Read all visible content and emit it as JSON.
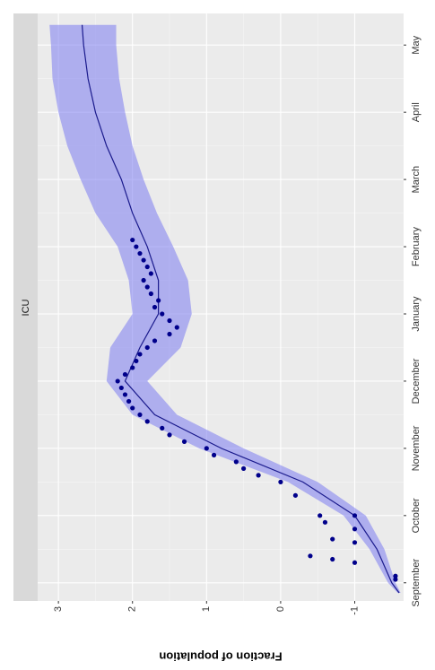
{
  "chart_data": {
    "type": "line",
    "facet": "ICU",
    "y_label": "Fraction of population",
    "x": [
      -0.15,
      0,
      0.5,
      1,
      1.5,
      2,
      2.5,
      3,
      3.5,
      4,
      4.5,
      5,
      5.5,
      6,
      6.5,
      7,
      7.5,
      8,
      8.3
    ],
    "values": [
      -1.6,
      -1.5,
      -1.3,
      -1.0,
      -0.3,
      0.8,
      1.7,
      2.1,
      1.9,
      1.65,
      1.65,
      1.8,
      2.0,
      2.15,
      2.35,
      2.5,
      2.6,
      2.66,
      2.68
    ],
    "lower": [
      -1.62,
      -1.55,
      -1.4,
      -1.15,
      -0.5,
      0.5,
      1.4,
      1.8,
      1.35,
      1.2,
      1.25,
      1.45,
      1.67,
      1.85,
      2.0,
      2.1,
      2.18,
      2.22,
      2.22
    ],
    "upper": [
      -1.58,
      -1.45,
      -1.2,
      -0.85,
      -0.1,
      1.1,
      2.0,
      2.35,
      2.3,
      2.0,
      2.05,
      2.2,
      2.5,
      2.7,
      2.88,
      3.0,
      3.08,
      3.1,
      3.12
    ],
    "color": "#1a1a8c",
    "band_color": "#7b7bf0",
    "point_color": "#00008b",
    "points": {
      "x": [
        0.05,
        0.1,
        0.3,
        0.35,
        0.4,
        0.6,
        0.65,
        0.8,
        0.9,
        1.0,
        1.0,
        1.3,
        1.5,
        1.6,
        1.7,
        1.8,
        1.9,
        2.0,
        2.1,
        2.2,
        2.3,
        2.4,
        2.5,
        2.6,
        2.7,
        2.8,
        2.9,
        3.0,
        3.1,
        3.2,
        3.3,
        3.4,
        3.5,
        3.6,
        3.7,
        3.8,
        3.9,
        4.0,
        4.1,
        4.2,
        4.3,
        4.4,
        4.5,
        4.6,
        4.7,
        4.8,
        4.9,
        5.0,
        5.1
      ],
      "values": [
        -1.55,
        -1.55,
        -1.0,
        -0.7,
        -0.4,
        -1.0,
        -0.7,
        -1.0,
        -0.6,
        -0.53,
        -1.0,
        -0.2,
        0.0,
        0.3,
        0.5,
        0.6,
        0.9,
        1.0,
        1.3,
        1.5,
        1.6,
        1.8,
        1.9,
        2.0,
        2.05,
        2.1,
        2.15,
        2.2,
        2.1,
        2.0,
        1.95,
        1.9,
        1.8,
        1.7,
        1.5,
        1.4,
        1.5,
        1.6,
        1.7,
        1.65,
        1.75,
        1.8,
        1.85,
        1.75,
        1.8,
        1.85,
        1.9,
        1.95,
        2.0
      ]
    },
    "xlim": [
      -0.27,
      8.47
    ],
    "xticks": [
      {
        "value": 0,
        "label": "September"
      },
      {
        "value": 1,
        "label": "October"
      },
      {
        "value": 2,
        "label": "November"
      },
      {
        "value": 3,
        "label": "December"
      },
      {
        "value": 4,
        "label": "January"
      },
      {
        "value": 5,
        "label": "February"
      },
      {
        "value": 6,
        "label": "March"
      },
      {
        "value": 7,
        "label": "April"
      },
      {
        "value": 8,
        "label": "May"
      }
    ],
    "ylim": [
      -1.66,
      3.28
    ],
    "yticks": [
      -1,
      0,
      1,
      2,
      3
    ],
    "grid": true
  }
}
